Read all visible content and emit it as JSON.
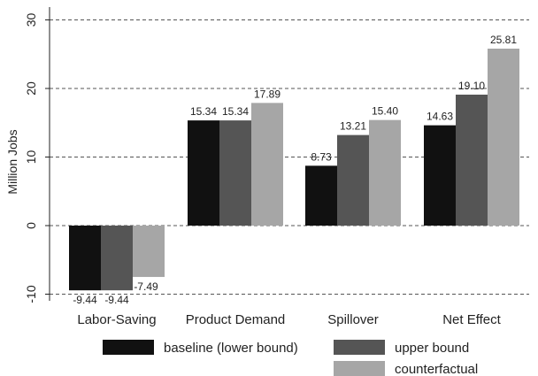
{
  "chart_data": {
    "type": "bar",
    "title": "",
    "xlabel": "",
    "ylabel": "Million Jobs",
    "ylim": [
      -12,
      31
    ],
    "yticks": [
      -10,
      0,
      10,
      20,
      30
    ],
    "grid": true,
    "legend_position": "bottom",
    "categories": [
      "Labor-Saving",
      "Product Demand",
      "Spillover",
      "Net Effect"
    ],
    "series": [
      {
        "name": "baseline (lower bound)",
        "color": "#111111",
        "values": [
          -9.44,
          15.34,
          8.73,
          14.63
        ],
        "labels": [
          "-9.44",
          "15.34",
          "8.73",
          "14.63"
        ]
      },
      {
        "name": "upper bound",
        "color": "#555555",
        "values": [
          -9.44,
          15.34,
          13.21,
          19.1
        ],
        "labels": [
          "-9.44",
          "15.34",
          "13.21",
          "19.10"
        ]
      },
      {
        "name": "counterfactual",
        "color": "#a6a6a6",
        "values": [
          -7.49,
          17.89,
          15.4,
          25.81
        ],
        "labels": [
          "-7.49",
          "17.89",
          "15.40",
          "25.81"
        ]
      }
    ]
  }
}
